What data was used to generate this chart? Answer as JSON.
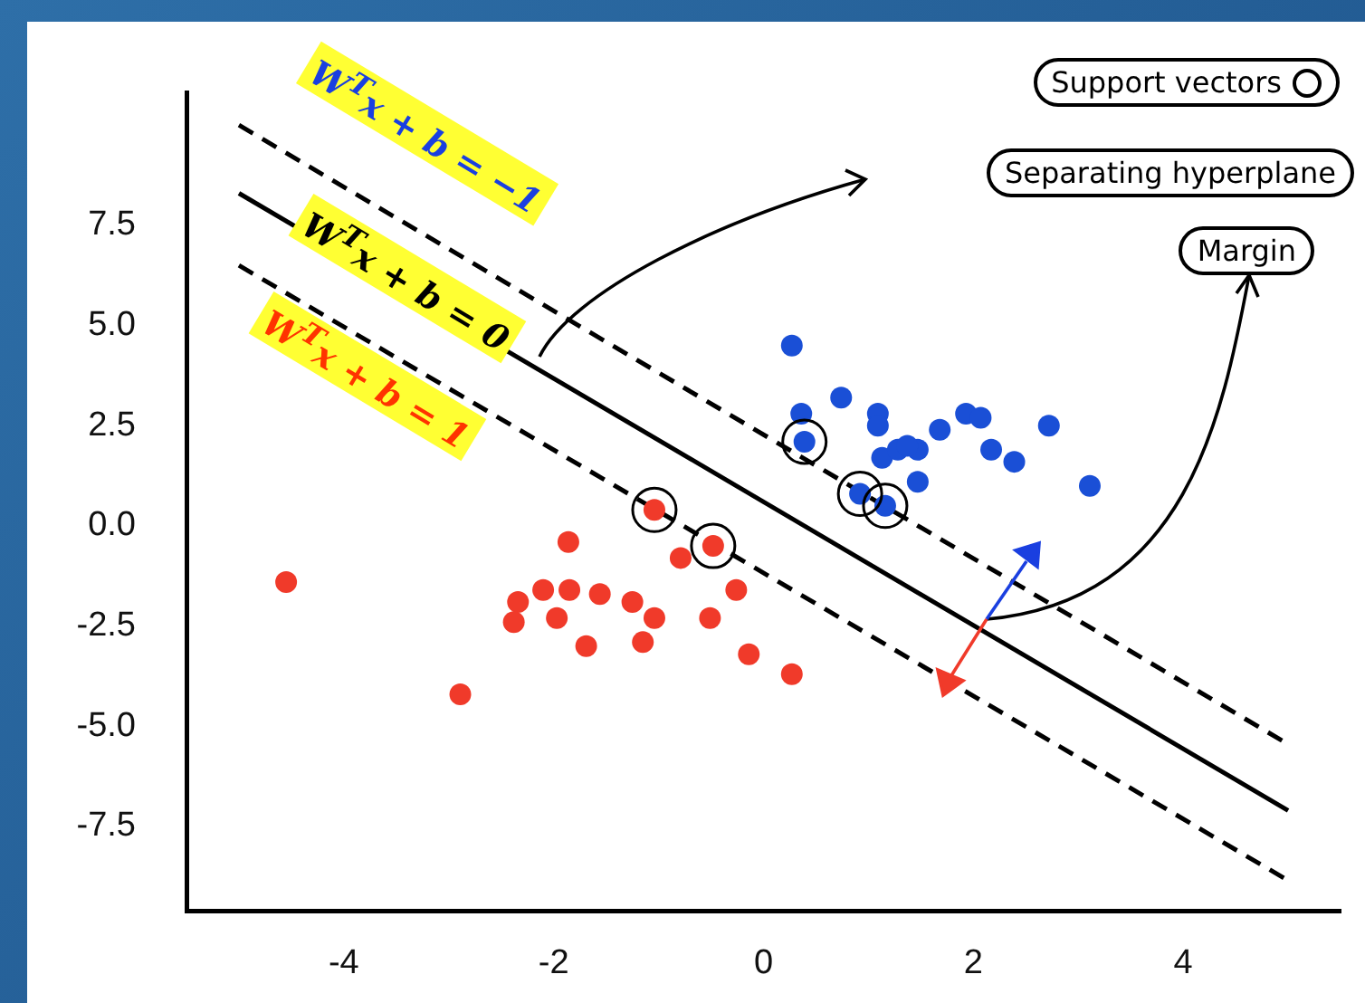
{
  "chart_data": {
    "type": "scatter",
    "xlim": [
      -5.5,
      5.5
    ],
    "ylim": [
      -9.6,
      10.8
    ],
    "xticks": [
      -4,
      -2,
      0,
      2,
      4
    ],
    "yticks": [
      {
        "value": -7.5,
        "label": "-7.5"
      },
      {
        "value": -5,
        "label": "-5.0"
      },
      {
        "value": -2.5,
        "label": "-2.5"
      },
      {
        "value": 0,
        "label": "0.0"
      },
      {
        "value": 2.5,
        "label": "2.5"
      },
      {
        "value": 5,
        "label": "5.0"
      },
      {
        "value": 7.5,
        "label": "7.5"
      }
    ],
    "grid": false,
    "legend": "top right",
    "marker": "circle",
    "series": [
      {
        "type": "scatter",
        "color": "#1a4fd6",
        "x": [
          0.27,
          0.36,
          0.74,
          1.09,
          1.09,
          0.39,
          1.13,
          1.28,
          1.47,
          1.37,
          1.68,
          1.93,
          2.07,
          2.17,
          2.39,
          2.72,
          3.11,
          1.47,
          0.92,
          1.16
        ],
        "values": [
          4.5,
          2.8,
          3.2,
          2.8,
          2.5,
          2.1,
          1.7,
          1.9,
          1.9,
          2.0,
          2.4,
          2.8,
          2.7,
          1.9,
          1.6,
          2.5,
          1.0,
          1.1,
          0.8,
          0.5
        ]
      },
      {
        "type": "scatter",
        "color": "#f03a2a",
        "x": [
          -4.55,
          -2.89,
          -1.86,
          -1.04,
          -0.48,
          -0.79,
          -2.34,
          -2.38,
          -2.1,
          -1.85,
          -1.56,
          -1.97,
          -1.69,
          -1.25,
          -1.04,
          -1.15,
          -0.51,
          -0.26,
          -0.14,
          0.27
        ],
        "values": [
          -1.4,
          -4.2,
          -0.4,
          0.4,
          -0.5,
          -0.8,
          -1.9,
          -2.4,
          -1.6,
          -1.6,
          -1.7,
          -2.3,
          -3.0,
          -1.9,
          -2.3,
          -2.9,
          -2.3,
          -1.6,
          -3.2,
          -3.7
        ]
      },
      {
        "type": "scatter",
        "name": "Support vectors",
        "color": "#000000",
        "marker": "circle",
        "x": [
          0.39,
          0.92,
          1.16,
          -1.04,
          -0.48
        ],
        "values": [
          2.1,
          0.8,
          0.5,
          0.4,
          -0.5
        ]
      },
      {
        "type": "line",
        "color": "#000000",
        "line_style": "solid",
        "marker": "none",
        "x": [
          -5.0,
          5.0
        ],
        "values": [
          8.3,
          -7.1
        ]
      },
      {
        "type": "line",
        "color": "#000000",
        "line_style": "dashed",
        "marker": "none",
        "x": [
          -5.0,
          4.97
        ],
        "values": [
          10.0,
          -5.4
        ]
      },
      {
        "type": "line",
        "color": "#000000",
        "line_style": "dashed",
        "marker": "none",
        "x": [
          -5.0,
          4.97
        ],
        "values": [
          6.5,
          -8.8
        ]
      }
    ],
    "annotations": [
      "W$^{T}$x + b = −1",
      "W$^{T}$x + b = 0",
      "W$^{T}$x + b = 1",
      "Separating hyperplane",
      "Margin"
    ]
  }
}
